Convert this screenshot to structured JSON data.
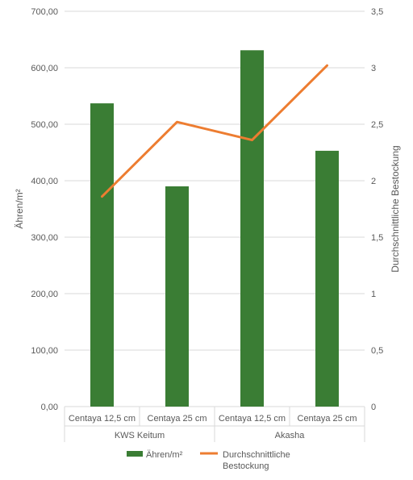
{
  "chart_data": {
    "type": "bar",
    "groups": [
      {
        "label": "KWS Keitum",
        "categories": [
          "Centaya 12,5 cm",
          "Centaya 25 cm"
        ]
      },
      {
        "label": "Akasha",
        "categories": [
          "Centaya 12,5 cm",
          "Centaya 25 cm"
        ]
      }
    ],
    "categories": [
      "Centaya 12,5 cm",
      "Centaya 25 cm",
      "Centaya 12,5 cm",
      "Centaya 25 cm"
    ],
    "series": [
      {
        "name": "Ähren/m²",
        "type": "bar",
        "axis": "left",
        "color": "#3a7d34",
        "values": [
          537,
          390,
          631,
          453
        ]
      },
      {
        "name": "Durchschnittliche Bestockung",
        "legend_lines": [
          "Durchschnittliche",
          "Bestockung"
        ],
        "type": "line",
        "axis": "right",
        "color": "#ed7d31",
        "values": [
          1.86,
          2.52,
          2.36,
          3.02
        ]
      }
    ],
    "ylabel": "Ähren/m²",
    "y2label": "Durchschnittliche Bestockung",
    "ylim": [
      0,
      700
    ],
    "y2lim": [
      0,
      3.5
    ],
    "yticks": [
      "0,00",
      "100,00",
      "200,00",
      "300,00",
      "400,00",
      "500,00",
      "600,00",
      "700,00"
    ],
    "y2ticks": [
      "0",
      "0,5",
      "1",
      "1,5",
      "2",
      "2,5",
      "3",
      "3,5"
    ],
    "grid": true,
    "legend_position": "bottom"
  }
}
